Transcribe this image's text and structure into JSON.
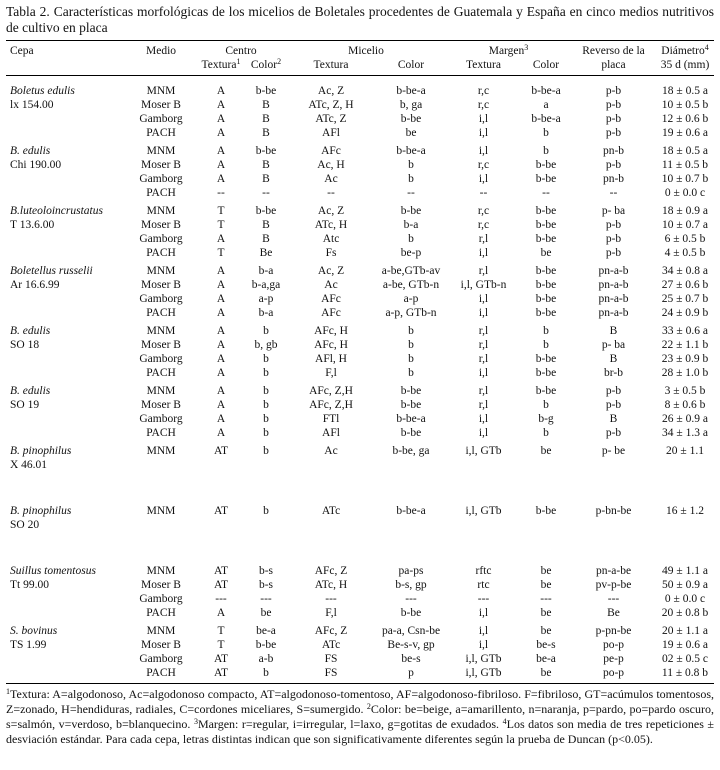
{
  "caption": {
    "label": "Tabla 2.",
    "text": "Características morfológicas de los micelios de Boletales procedentes de Guatemala y España en cinco medios nutritivos de cultivo en placa"
  },
  "header": {
    "cepa": "Cepa",
    "medio": "Medio",
    "centro": "Centro",
    "micelio": "Micelio",
    "margen": "Margen",
    "margen_sup": "3",
    "reverso": "Reverso de la placa",
    "diametro": "Diámetro",
    "diametro_sup": "4",
    "diametro_unit": "35 d (mm)",
    "sub": [
      {
        "text": "Textura",
        "sup": "1"
      },
      {
        "text": "Color",
        "sup": "2"
      },
      {
        "text": "Textura"
      },
      {
        "text": "Color"
      },
      {
        "text": "Textura"
      },
      {
        "text": "Color"
      }
    ]
  },
  "table": {
    "groups": [
      {
        "cepa": "Boletus edulis",
        "code": "lx 154.00",
        "rows": [
          [
            "MNM",
            "A",
            "b-be",
            "Ac, Z",
            "b-be-a",
            "r,c",
            "b-be-a",
            "p-b",
            "18 ± 0.5 a"
          ],
          [
            "Moser B",
            "A",
            "B",
            "ATc, Z, H",
            "b, ga",
            "r,c",
            "a",
            "p-b",
            "10 ± 0.5 b"
          ],
          [
            "Gamborg",
            "A",
            "B",
            "ATc, Z",
            "b-be",
            "i,l",
            "b-be-a",
            "p-b",
            "12 ± 0.6 b"
          ],
          [
            "PACH",
            "A",
            "B",
            "AFl",
            "be",
            "i,l",
            "b",
            "p-b",
            "19 ± 0.6 a"
          ]
        ]
      },
      {
        "cepa": "B. edulis",
        "code": "Chi 190.00",
        "rows": [
          [
            "MNM",
            "A",
            "b-be",
            "AFc",
            "b-be-a",
            "i,l",
            "b",
            "pn-b",
            "18 ± 0.5 a"
          ],
          [
            "Moser B",
            "A",
            "B",
            "Ac, H",
            "b",
            "r,c",
            "b-be",
            "p-b",
            "11 ± 0.5 b"
          ],
          [
            "Gamborg",
            "A",
            "B",
            "Ac",
            "b",
            "i,l",
            "b-be",
            "pn-b",
            "10 ± 0.7 b"
          ],
          [
            "PACH",
            "--",
            "--",
            "--",
            "--",
            "--",
            "--",
            "--",
            "0 ± 0.0 c"
          ]
        ]
      },
      {
        "cepa": "B.luteoloincrustatus",
        "code": "T 13.6.00",
        "rows": [
          [
            "MNM",
            "T",
            "b-be",
            "Ac, Z",
            "b-be",
            "r,c",
            "b-be",
            "p- ba",
            "18 ± 0.9 a"
          ],
          [
            "Moser B",
            "T",
            "B",
            "ATc, H",
            "b-a",
            "r,c",
            "b-be",
            "p-b",
            "10 ± 0.7 a"
          ],
          [
            "Gamborg",
            "A",
            "B",
            "Atc",
            "b",
            "r,l",
            "b-be",
            "p-b",
            "6 ± 0.5 b"
          ],
          [
            "PACH",
            "T",
            "Be",
            "Fs",
            "be-p",
            "i,l",
            "be",
            "p-b",
            "4 ± 0.5 b"
          ]
        ]
      },
      {
        "cepa": "Boletellus russelii",
        "code": "Ar 16.6.99",
        "rows": [
          [
            "MNM",
            "A",
            "b-a",
            "Ac, Z",
            "a-be,GTb-av",
            "r,l",
            "b-be",
            "pn-a-b",
            "34 ± 0.8 a"
          ],
          [
            "Moser B",
            "A",
            "b-a,ga",
            "Ac",
            "a-be, GTb-n",
            "i,l, GTb-n",
            "b-be",
            "pn-a-b",
            "27 ± 0.6 b"
          ],
          [
            "Gamborg",
            "A",
            "a-p",
            "AFc",
            "a-p",
            "i,l",
            "b-be",
            "pn-a-b",
            "25 ± 0.7 b"
          ],
          [
            "PACH",
            "A",
            "b-a",
            "AFc",
            "a-p, GTb-n",
            "i,l",
            "b-be",
            "pn-a-b",
            "24 ± 0.9 b"
          ]
        ]
      },
      {
        "cepa": "B. edulis",
        "code": "SO 18",
        "rows": [
          [
            "MNM",
            "A",
            "b",
            "AFc, H",
            "b",
            "r,l",
            "b",
            "B",
            "33 ± 0.6 a"
          ],
          [
            "Moser B",
            "A",
            "b, gb",
            "AFc, H",
            "b",
            "r,l",
            "b",
            "p- ba",
            "22 ± 1.1 b"
          ],
          [
            "Gamborg",
            "A",
            "b",
            "AFl, H",
            "b",
            "r,l",
            "b-be",
            "B",
            "23 ± 0.9 b"
          ],
          [
            "PACH",
            "A",
            "b",
            "F,l",
            "b",
            "i,l",
            "b-be",
            "br-b",
            "28 ± 1.0 b"
          ]
        ]
      },
      {
        "cepa": "B. edulis",
        "code": "SO 19",
        "rows": [
          [
            "MNM",
            "A",
            "b",
            "AFc, Z,H",
            "b-be",
            "r,l",
            "b-be",
            "p-b",
            "3 ± 0.5 b"
          ],
          [
            "Moser B",
            "A",
            "b",
            "AFc, Z,H",
            "b-be",
            "r,l",
            "b",
            "p-b",
            "8 ± 0.6 b"
          ],
          [
            "Gamborg",
            "A",
            "b",
            "FTl",
            "b-be-a",
            "i,l",
            "b-g",
            "B",
            "26 ± 0.9 a"
          ],
          [
            "PACH",
            "A",
            "b",
            "AFl",
            "b-be",
            "i,l",
            "b",
            "p-b",
            "34 ± 1.3 a"
          ]
        ]
      },
      {
        "cepa": "B. pinophilus",
        "code": "X 46.01",
        "rows": [
          [
            "MNM",
            "AT",
            "b",
            "Ac",
            "b-be, ga",
            "i,l, GTb",
            "be",
            "p- be",
            "20 ± 1.1"
          ]
        ]
      },
      {
        "cepa": "B. pinophilus",
        "code": "SO 20",
        "rows": [
          [
            "MNM",
            "AT",
            "b",
            "ATc",
            "b-be-a",
            "i,l, GTb",
            "b-be",
            "p-bn-be",
            "16 ± 1.2"
          ]
        ]
      },
      {
        "cepa": "Suillus tomentosus",
        "code": "Tt 99.00",
        "rows": [
          [
            "MNM",
            "AT",
            "b-s",
            "AFc, Z",
            "pa-ps",
            "rftc",
            "be",
            "pn-a-be",
            "49 ± 1.1 a"
          ],
          [
            "Moser B",
            "AT",
            "b-s",
            "ATc, H",
            "b-s, gp",
            "rtc",
            "be",
            "pv-p-be",
            "50 ± 0.9 a"
          ],
          [
            "Gamborg",
            "---",
            "---",
            "---",
            "---",
            "---",
            "---",
            "---",
            "0 ± 0.0  c"
          ],
          [
            "PACH",
            "A",
            "be",
            "F,l",
            "b-be",
            "i,l",
            "be",
            "Be",
            "20 ± 0.8 b"
          ]
        ]
      },
      {
        "cepa": "S. bovinus",
        "code": "TS 1.99",
        "rows": [
          [
            "MNM",
            "T",
            "be-a",
            "AFc, Z",
            "pa-a, Csn-be",
            "i,l",
            "be",
            "p-pn-be",
            "20 ± 1.1 a"
          ],
          [
            "Moser B",
            "T",
            "b-be",
            "ATc",
            "Be-s-v, gp",
            "i,l",
            "be-s",
            "po-p",
            "19 ± 0.6 a"
          ],
          [
            "Gamborg",
            "AT",
            "a-b",
            "FS",
            "be-s",
            "i,l, GTb",
            "be-a",
            "pe-p",
            "02 ± 0.5 c"
          ],
          [
            "PACH",
            "AT",
            "b",
            "FS",
            "p",
            "i,l, GTb",
            "be",
            "po-p",
            "11 ± 0.8 b"
          ]
        ]
      }
    ]
  },
  "footnote": {
    "parts": [
      {
        "sup": "1",
        "text": "Textura: A=algodonoso, Ac=algodonoso compacto, AT=algodonoso-tomentoso, AF=algodonoso-fibriloso. F=fibriloso, GT=acúmulos tomentosos, Z=zonado, H=hendiduras, radiales,  C=cordones miceliares, S=sumergido. "
      },
      {
        "sup": "2",
        "text": "Color: be=beige, a=amarillento, n=naranja, p=pardo, po=pardo oscuro, s=salmón, v=verdoso, b=blanquecino. "
      },
      {
        "sup": "3",
        "text": "Margen: r=regular, i=irregular, l=laxo, g=gotitas de exudados. "
      },
      {
        "sup": "4",
        "text": "Los datos son media de tres repeticiones ± desviación estándar. Para cada cepa, letras distintas indican que son significativamente diferentes según la prueba de Duncan (p<0.05)."
      }
    ]
  }
}
